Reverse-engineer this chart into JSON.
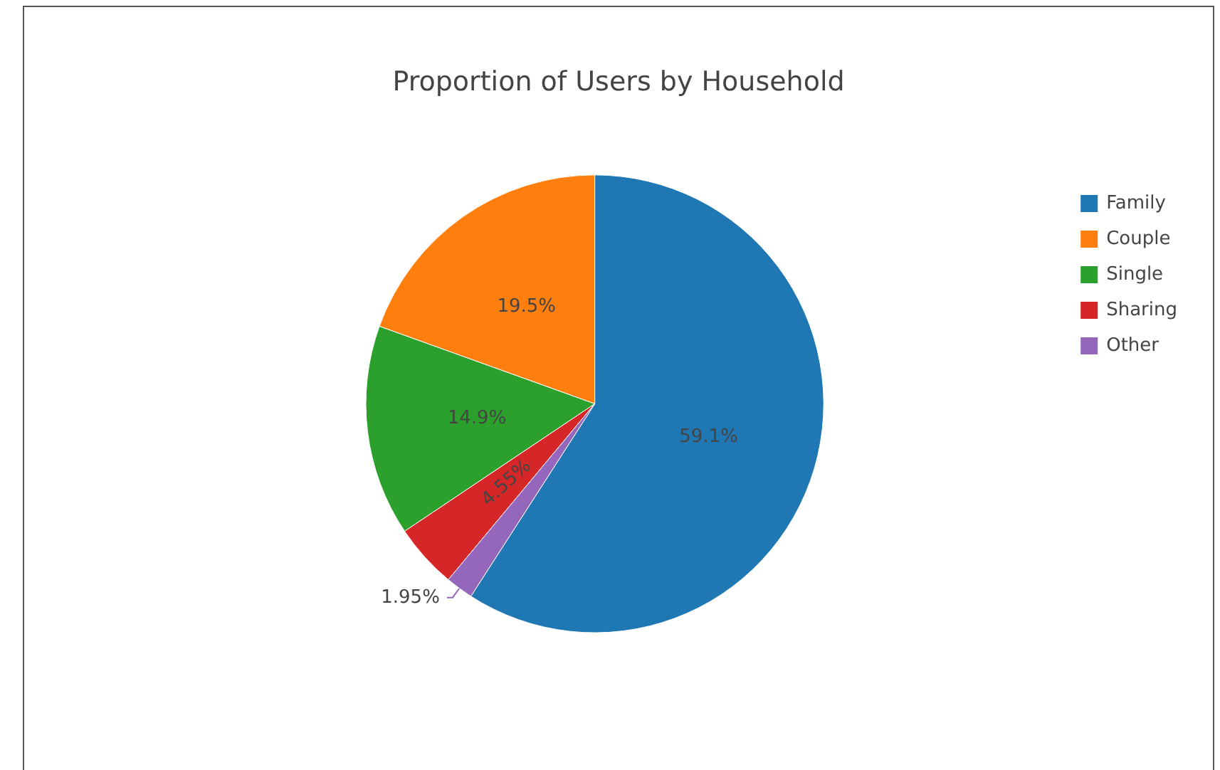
{
  "chart_data": {
    "type": "pie",
    "title": "Proportion of Users by Household",
    "categories": [
      "Family",
      "Couple",
      "Single",
      "Sharing",
      "Other"
    ],
    "values": [
      59.1,
      19.5,
      14.9,
      4.55,
      1.95
    ],
    "colors": [
      "#1f77b4",
      "#ff7f0e",
      "#2ca02c",
      "#d62728",
      "#9467bd"
    ],
    "value_labels": [
      "59.1%",
      "19.5%",
      "14.9%",
      "4.55%",
      "1.95%"
    ],
    "legend": "top right"
  }
}
